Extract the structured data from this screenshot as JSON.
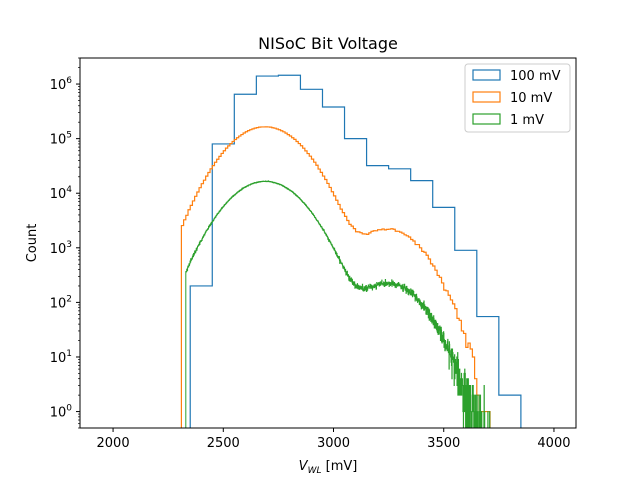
{
  "chart_data": {
    "type": "histogram-step",
    "title": "NISoC Bit Voltage",
    "xlabel_main": "V",
    "xlabel_sub": "WL",
    "xlabel_unit": " [mV]",
    "ylabel": "Count",
    "xlim": [
      1850,
      4100
    ],
    "ylim_log": [
      0.5,
      3000000
    ],
    "yscale": "log",
    "x_ticks": [
      2000,
      2500,
      3000,
      3500,
      4000
    ],
    "y_ticks": [
      {
        "value": 1,
        "base": "10",
        "exp": "0"
      },
      {
        "value": 10,
        "base": "10",
        "exp": "1"
      },
      {
        "value": 100,
        "base": "10",
        "exp": "2"
      },
      {
        "value": 1000,
        "base": "10",
        "exp": "3"
      },
      {
        "value": 10000,
        "base": "10",
        "exp": "4"
      },
      {
        "value": 100000,
        "base": "10",
        "exp": "5"
      },
      {
        "value": 1000000,
        "base": "10",
        "exp": "6"
      }
    ],
    "legend_position": "top-right",
    "grid": false,
    "series": [
      {
        "name": "100 mV",
        "color": "#1f77b4",
        "bin_width": 100,
        "bin_start": 2350,
        "counts": [
          200,
          80000,
          650000,
          1400000,
          1450000,
          800000,
          380000,
          100000,
          32000,
          28000,
          17000,
          5500,
          900,
          55,
          2
        ]
      },
      {
        "name": "10 mV",
        "color": "#ff7f0e",
        "bin_width": 10,
        "bin_start": 2310,
        "peaks": [
          {
            "mu": 2690,
            "sigma": 130,
            "amp": 165000
          },
          {
            "mu": 3250,
            "sigma": 115,
            "amp": 2200
          }
        ],
        "range": [
          2310,
          3740
        ]
      },
      {
        "name": "1 mV",
        "color": "#2ca02c",
        "bin_width": 1,
        "bin_start": 2330,
        "peaks": [
          {
            "mu": 2690,
            "sigma": 130,
            "amp": 16500
          },
          {
            "mu": 3250,
            "sigma": 115,
            "amp": 220
          }
        ],
        "range": [
          2330,
          3720
        ]
      }
    ]
  }
}
